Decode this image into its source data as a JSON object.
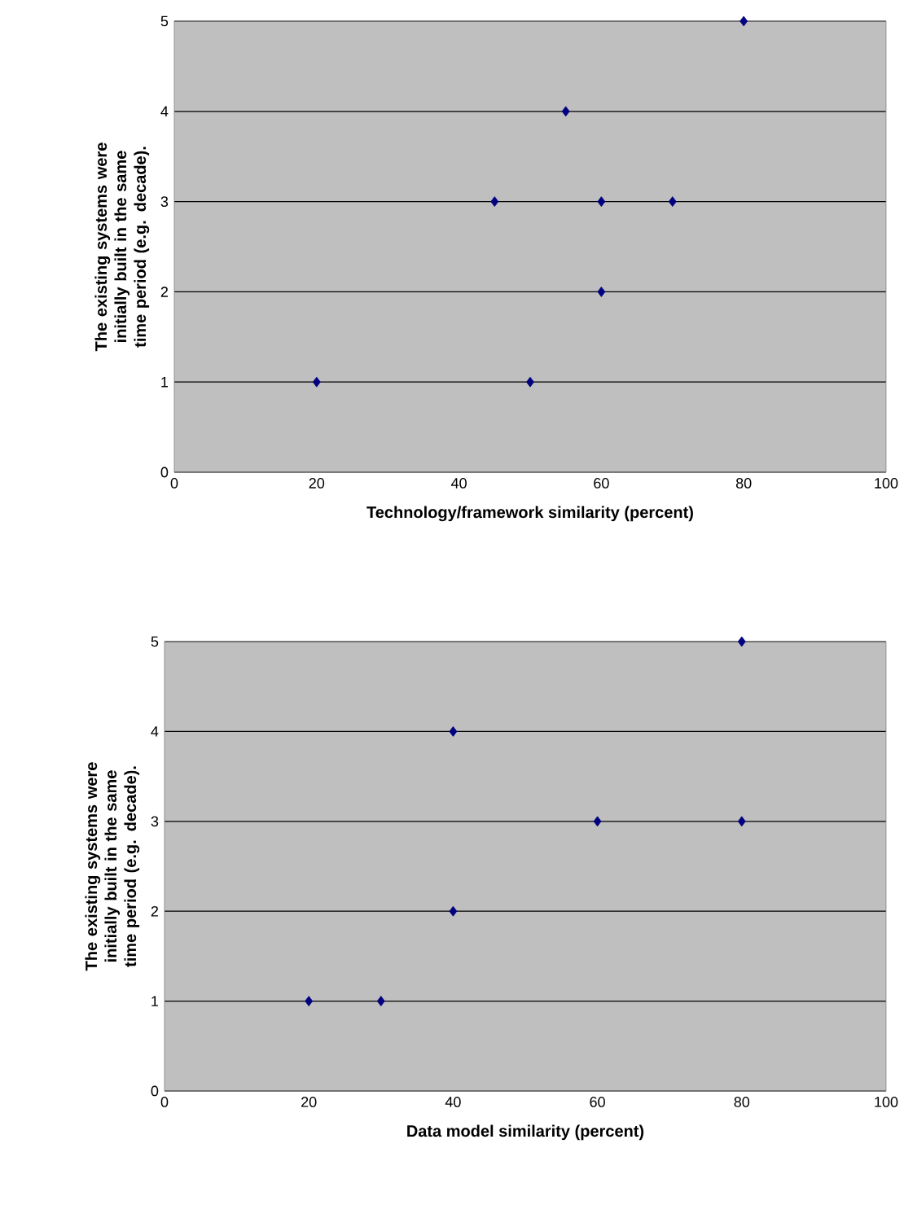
{
  "chart_data": [
    {
      "type": "scatter",
      "xlabel": "Technology/framework similarity (percent)",
      "ylabel": "The existing systems were initially built in the same time period (e.g. decade).",
      "x": [
        20,
        50,
        60,
        45,
        60,
        70,
        55,
        80
      ],
      "values": [
        1,
        1,
        2,
        3,
        3,
        3,
        4,
        5
      ],
      "color": "#000080",
      "marker": "diamond",
      "xlim": [
        0,
        100
      ],
      "ylim": [
        0,
        5
      ],
      "xticks": [
        0,
        20,
        40,
        60,
        80,
        100
      ],
      "yticks": [
        0,
        1,
        2,
        3,
        4,
        5
      ],
      "grid": "y"
    },
    {
      "type": "scatter",
      "xlabel": "Data model similarity (percent)",
      "ylabel": "The existing systems were initially built in the same time period (e.g. decade).",
      "x": [
        20,
        30,
        40,
        40,
        60,
        80,
        80
      ],
      "values": [
        1,
        1,
        2,
        4,
        3,
        3,
        5
      ],
      "color": "#000080",
      "marker": "diamond",
      "xlim": [
        0,
        100
      ],
      "ylim": [
        0,
        5
      ],
      "xticks": [
        0,
        20,
        40,
        60,
        80,
        100
      ],
      "yticks": [
        0,
        1,
        2,
        3,
        4,
        5
      ],
      "grid": "y"
    }
  ]
}
